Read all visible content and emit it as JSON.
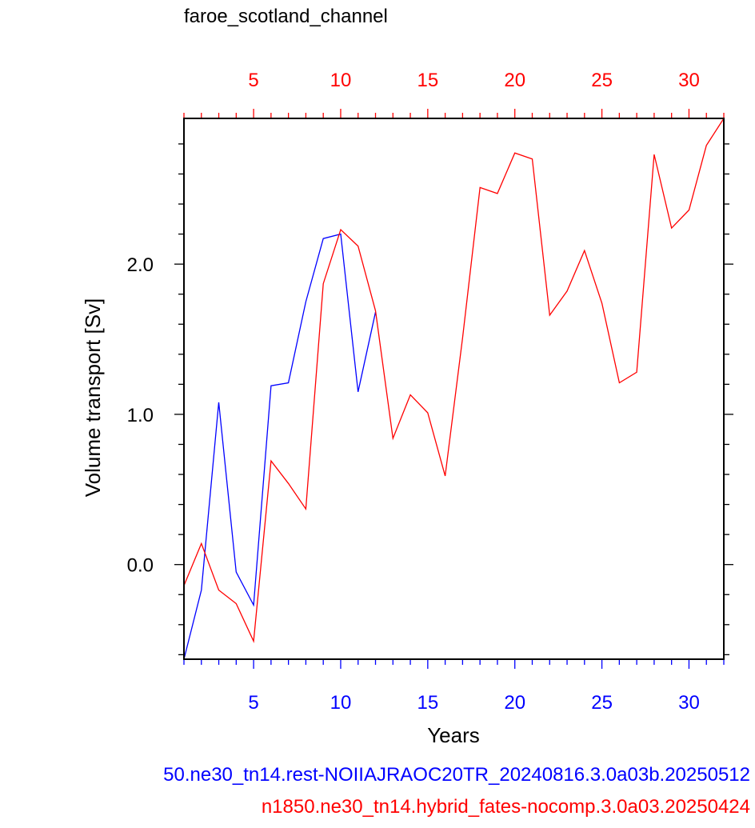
{
  "chart_data": {
    "type": "line",
    "title": "faroe_scotland_channel",
    "xlabel": "Years",
    "ylabel": "Volume transport [Sv]",
    "xlim": [
      1,
      32
    ],
    "ylim": [
      -0.63,
      2.97
    ],
    "grid": false,
    "y_major_ticks": [
      0.0,
      1.0,
      2.0
    ],
    "y_tick_labels": [
      "0.0",
      "1.0",
      "2.0"
    ],
    "bottom_axis": {
      "ticks": [
        5,
        10,
        15,
        20,
        25,
        30
      ],
      "labels": [
        "5",
        "10",
        "15",
        "20",
        "25",
        "30"
      ],
      "color": "#0000ff"
    },
    "top_axis": {
      "ticks": [
        5,
        10,
        15,
        20,
        25,
        30
      ],
      "labels": [
        "5",
        "10",
        "15",
        "20",
        "25",
        "30"
      ],
      "color": "#ff0000"
    },
    "series": [
      {
        "name": "50.ne30_tn14.rest-NOIIAJRAOC20TR_20240816.3.0a03b.20250512",
        "color": "#0000ff",
        "x": [
          1,
          2,
          3,
          4,
          5,
          6,
          7,
          8,
          9,
          10,
          11,
          12
        ],
        "values": [
          -0.63,
          -0.17,
          1.08,
          -0.05,
          -0.27,
          1.19,
          1.21,
          1.75,
          2.17,
          2.2,
          1.15,
          1.68
        ]
      },
      {
        "name": "n1850.ne30_tn14.hybrid_fates-nocomp.3.0a03.20250424",
        "color": "#ff0000",
        "x": [
          1,
          2,
          3,
          4,
          5,
          6,
          7,
          8,
          9,
          10,
          11,
          12,
          13,
          14,
          15,
          16,
          17,
          18,
          19,
          20,
          21,
          22,
          23,
          24,
          25,
          26,
          27,
          28,
          29,
          30,
          31,
          32
        ],
        "values": [
          -0.14,
          0.14,
          -0.17,
          -0.26,
          -0.51,
          0.69,
          0.54,
          0.37,
          1.87,
          2.23,
          2.12,
          1.69,
          0.84,
          1.13,
          1.01,
          0.59,
          1.51,
          2.51,
          2.47,
          2.74,
          2.7,
          1.66,
          1.82,
          2.09,
          1.74,
          1.21,
          1.28,
          2.73,
          2.24,
          2.36,
          2.79,
          2.97
        ]
      }
    ]
  }
}
